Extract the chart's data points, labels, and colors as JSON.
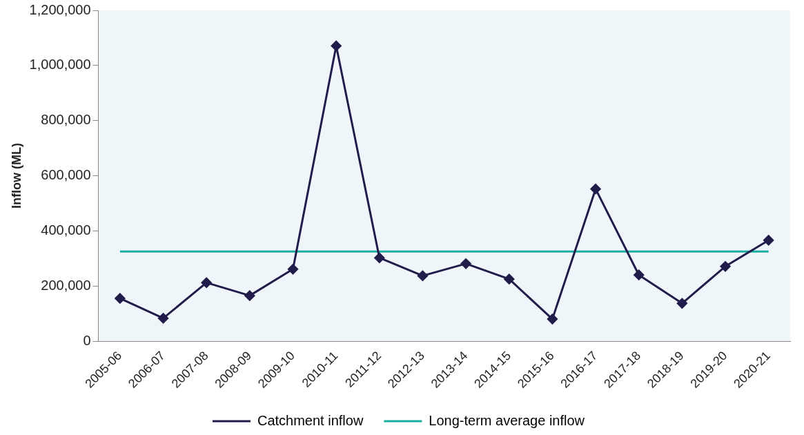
{
  "chart_data": {
    "type": "line",
    "ylabel": "Inflow (ML)",
    "categories": [
      "2005-06",
      "2006-07",
      "2007-08",
      "2008-09",
      "2009-10",
      "2010-11",
      "2011-12",
      "2012-13",
      "2013-14",
      "2014-15",
      "2015-16",
      "2016-17",
      "2017-18",
      "2018-19",
      "2019-20",
      "2020-21"
    ],
    "series": [
      {
        "name": "Catchment inflow",
        "color": "#221c4b",
        "marker": "diamond",
        "values": [
          155000,
          83000,
          212000,
          165000,
          261000,
          1071000,
          302000,
          237000,
          281000,
          225000,
          80000,
          552000,
          240000,
          137000,
          271000,
          366000
        ]
      },
      {
        "name": "Long-term average inflow",
        "color": "#1aaea3",
        "marker": "none",
        "values": [
          325000,
          325000,
          325000,
          325000,
          325000,
          325000,
          325000,
          325000,
          325000,
          325000,
          325000,
          325000,
          325000,
          325000,
          325000,
          325000
        ]
      }
    ],
    "ylim": [
      0,
      1200000
    ],
    "yticks": [
      0,
      {
        "value": 200000,
        "label": "200,000"
      },
      {
        "value": 400000,
        "label": "400,000"
      },
      {
        "value": 600000,
        "label": "600,000"
      },
      {
        "value": 800000,
        "label": "800,000"
      },
      {
        "value": 1000000,
        "label": "1,000,000"
      },
      {
        "value": 1200000,
        "label": "1,200,000"
      }
    ],
    "grid": false,
    "legend": "bottom",
    "line_style": "solid"
  }
}
